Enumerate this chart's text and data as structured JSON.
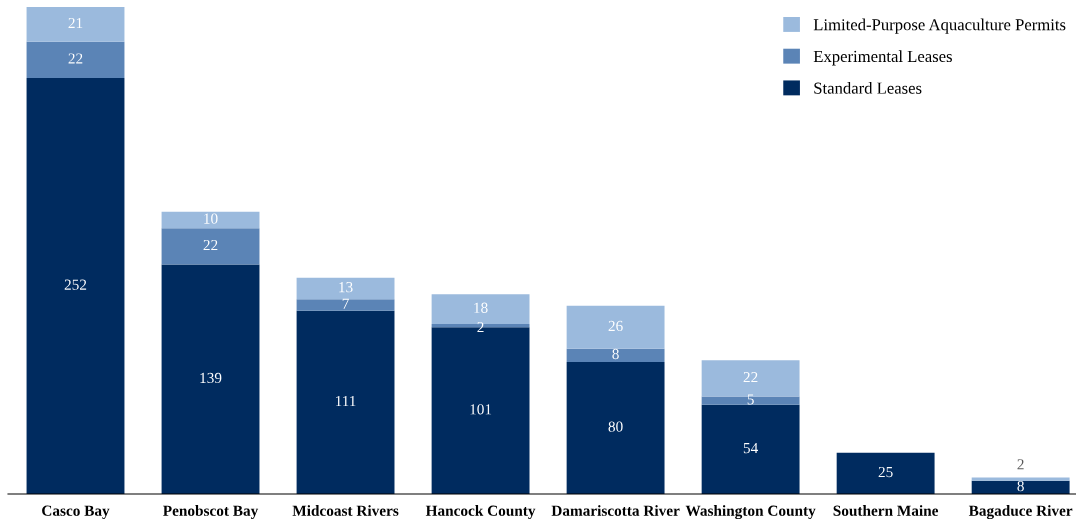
{
  "chart_data": {
    "type": "bar",
    "stacked": true,
    "data_labels": true,
    "legend": "top right",
    "categories": [
      "Casco Bay",
      "Penobscot Bay",
      "Midcoast Rivers",
      "Hancock County",
      "Damariscotta River",
      "Washington County",
      "Southern Maine",
      "Bagaduce River"
    ],
    "series": [
      {
        "name": "Standard Leases",
        "color": "#002b5f",
        "values": [
          252,
          139,
          111,
          101,
          80,
          54,
          25,
          8
        ]
      },
      {
        "name": "Experimental Leases",
        "color": "#5b84b6",
        "values": [
          22,
          22,
          7,
          2,
          8,
          5,
          null,
          null
        ]
      },
      {
        "name": "Limited-Purpose Aquaculture Permits",
        "color": "#9bbadd",
        "values": [
          21,
          10,
          13,
          18,
          26,
          22,
          null,
          2
        ]
      }
    ]
  }
}
